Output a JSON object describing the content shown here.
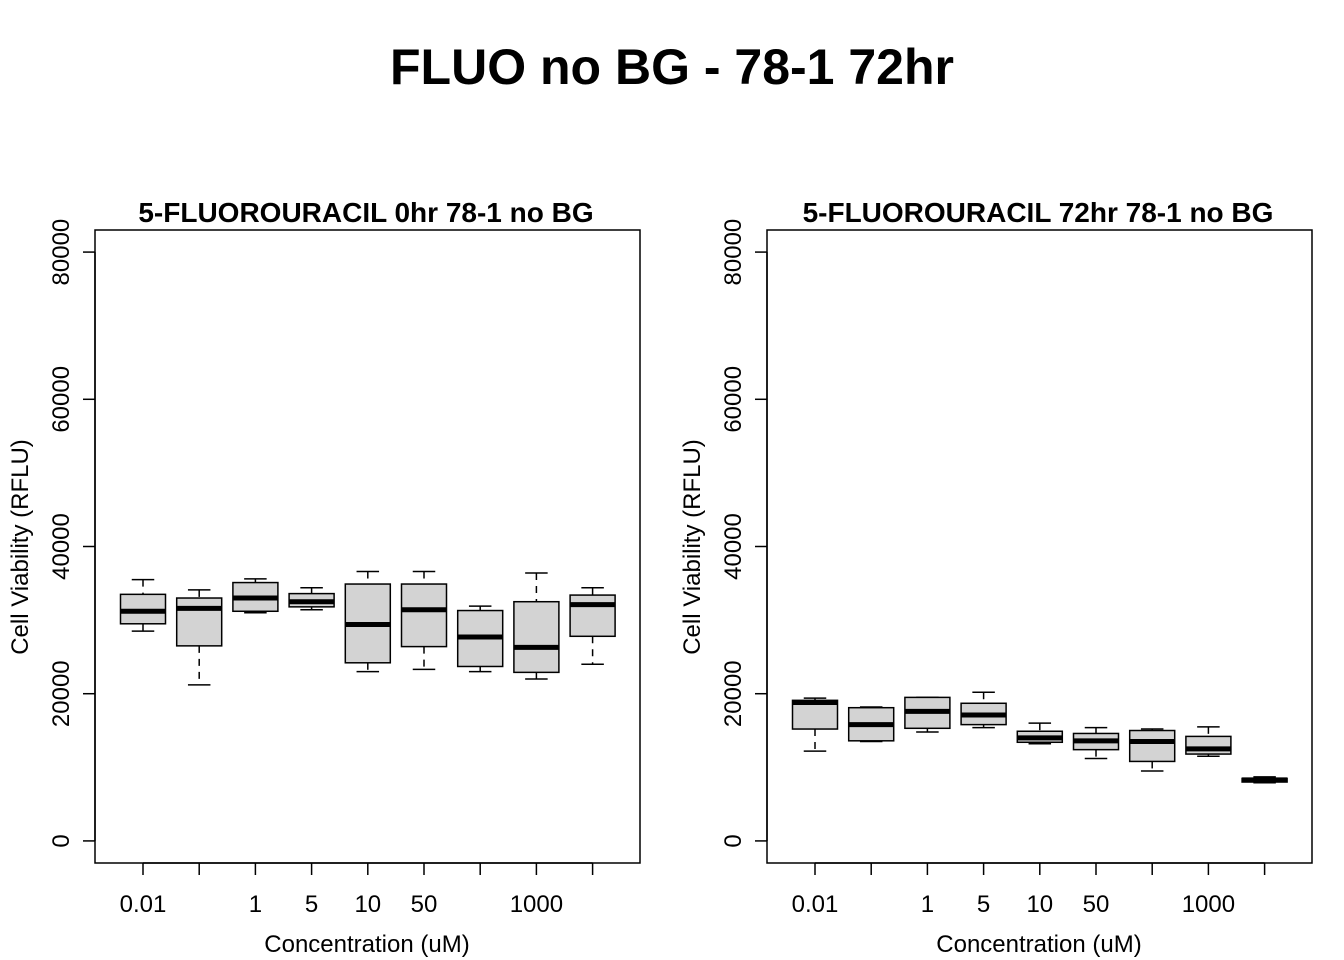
{
  "figure": {
    "title": "FLUO no BG - 78-1 72hr"
  },
  "chart_data": [
    {
      "type": "box",
      "title": "5-FLUOROURACIL 0hr 78-1 no BG",
      "xlabel": "Concentration (uM)",
      "ylabel": "Cell Viability (RFLU)",
      "ylim": [
        -3000,
        83000
      ],
      "y_ticks": [
        0,
        20000,
        40000,
        60000,
        80000
      ],
      "categories": [
        "0.01",
        "",
        "1",
        "5",
        "10",
        "50",
        "",
        "1000",
        ""
      ],
      "box_color": "#d3d3d3",
      "boxes": [
        {
          "min": 28500,
          "q1": 29500,
          "median": 31200,
          "q3": 33500,
          "max": 35500
        },
        {
          "min": 21200,
          "q1": 26500,
          "median": 31600,
          "q3": 33000,
          "max": 34100
        },
        {
          "min": 31000,
          "q1": 31200,
          "median": 33000,
          "q3": 35100,
          "max": 35600
        },
        {
          "min": 31400,
          "q1": 31800,
          "median": 32500,
          "q3": 33600,
          "max": 34400
        },
        {
          "min": 23000,
          "q1": 24200,
          "median": 29400,
          "q3": 34900,
          "max": 36600
        },
        {
          "min": 23300,
          "q1": 26400,
          "median": 31400,
          "q3": 34900,
          "max": 36600
        },
        {
          "min": 23000,
          "q1": 23700,
          "median": 27700,
          "q3": 31300,
          "max": 31900
        },
        {
          "min": 22000,
          "q1": 22900,
          "median": 26300,
          "q3": 32500,
          "max": 36400
        },
        {
          "min": 24000,
          "q1": 27800,
          "median": 32100,
          "q3": 33400,
          "max": 34400
        }
      ]
    },
    {
      "type": "box",
      "title": "5-FLUOROURACIL 72hr 78-1 no BG",
      "xlabel": "Concentration (uM)",
      "ylabel": "Cell Viability (RFLU)",
      "ylim": [
        -3000,
        83000
      ],
      "y_ticks": [
        0,
        20000,
        40000,
        60000,
        80000
      ],
      "categories": [
        "0.01",
        "",
        "1",
        "5",
        "10",
        "50",
        "",
        "1000",
        ""
      ],
      "box_color": "#d3d3d3",
      "boxes": [
        {
          "min": 12200,
          "q1": 15200,
          "median": 18800,
          "q3": 19100,
          "max": 19400
        },
        {
          "min": 13500,
          "q1": 13600,
          "median": 15800,
          "q3": 18100,
          "max": 18200
        },
        {
          "min": 14800,
          "q1": 15300,
          "median": 17600,
          "q3": 19500,
          "max": 19500
        },
        {
          "min": 15400,
          "q1": 15800,
          "median": 17100,
          "q3": 18700,
          "max": 20200
        },
        {
          "min": 13200,
          "q1": 13400,
          "median": 14000,
          "q3": 14900,
          "max": 16000
        },
        {
          "min": 11200,
          "q1": 12400,
          "median": 13600,
          "q3": 14600,
          "max": 15400
        },
        {
          "min": 9500,
          "q1": 10800,
          "median": 13500,
          "q3": 15000,
          "max": 15200
        },
        {
          "min": 11500,
          "q1": 11800,
          "median": 12500,
          "q3": 14200,
          "max": 15500
        },
        {
          "min": 7900,
          "q1": 8000,
          "median": 8300,
          "q3": 8500,
          "max": 8700
        }
      ]
    }
  ]
}
